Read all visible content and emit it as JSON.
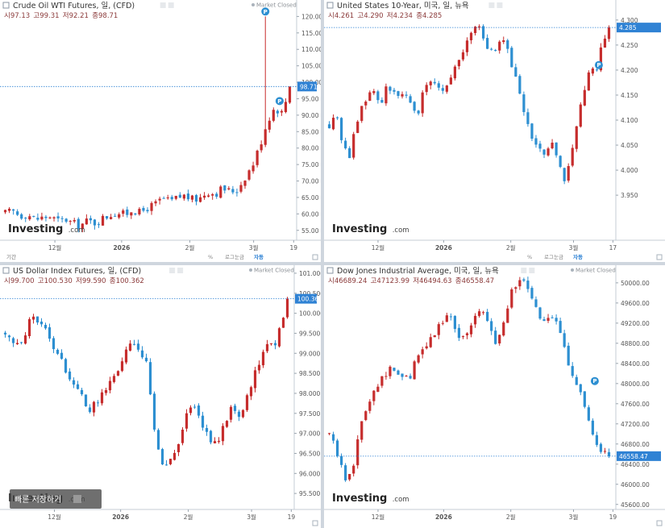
{
  "charts": [
    {
      "title": "Crude Oil WTI Futures, 일, (CFD)",
      "market_status": "Market Closed",
      "ohlc": {
        "o_label": "시",
        "o": "97.13",
        "h_label": "고",
        "h": "99.31",
        "l_label": "저",
        "l": "92.21",
        "c_label": "종",
        "c": "98.71"
      },
      "brand": "Investing",
      "brand_suffix": ".com",
      "last_price": "98.71",
      "bottom_left_label": "기간",
      "bottom_controls": [
        "%",
        "로그눈금",
        "자동"
      ],
      "colors": {
        "up": "#c62d2d",
        "down": "#2d8fd1",
        "pricetag": "#2f82d4",
        "marker": "#2d8fd1"
      }
    },
    {
      "title": "United States 10-Year, 미국, 일, 뉴욕",
      "market_status": "",
      "ohlc": {
        "o_label": "시",
        "o": "4.261",
        "h_label": "고",
        "h": "4.290",
        "l_label": "저",
        "l": "4.234",
        "c_label": "종",
        "c": "4.285"
      },
      "brand": "Investing",
      "brand_suffix": ".com",
      "last_price": "4.285",
      "bottom_left_label": "",
      "bottom_controls": [
        "%",
        "로그눈금",
        "자동"
      ],
      "colors": {
        "up": "#c62d2d",
        "down": "#2d8fd1",
        "pricetag": "#2f82d4",
        "marker": "#2d8fd1"
      }
    },
    {
      "title": "US Dollar Index Futures, 일, (CFD)",
      "market_status": "Market Closed",
      "ohlc": {
        "o_label": "시",
        "o": "99.700",
        "h_label": "고",
        "h": "100.530",
        "l_label": "저",
        "l": "99.590",
        "c_label": "종",
        "c": "100.362"
      },
      "brand": "Investing",
      "brand_suffix": ".com",
      "last_price": "100.362",
      "bottom_left_label": "",
      "bottom_controls": [],
      "overlay_button": "빠른 저장하기",
      "colors": {
        "up": "#c62d2d",
        "down": "#2d8fd1",
        "pricetag": "#2f82d4",
        "marker": "#2d8fd1"
      }
    },
    {
      "title": "Dow Jones Industrial Average, 미국, 일, 뉴욕",
      "market_status": "Market Closed",
      "ohlc": {
        "o_label": "시",
        "o": "46689.24",
        "h_label": "고",
        "h": "47123.99",
        "l_label": "저",
        "l": "46494.63",
        "c_label": "종",
        "c": "46558.47"
      },
      "brand": "Investing",
      "brand_suffix": ".com",
      "last_price": "46558.47",
      "bottom_left_label": "",
      "bottom_controls": [],
      "colors": {
        "up": "#c62d2d",
        "down": "#2d8fd1",
        "pricetag": "#2f82d4",
        "marker": "#2d8fd1"
      }
    }
  ],
  "chart_data": [
    {
      "type": "candlestick",
      "title": "Crude Oil WTI Futures, 일, (CFD)",
      "ylim": [
        52,
        125
      ],
      "y_ticks": [
        "120.00",
        "115.00",
        "110.00",
        "105.00",
        "100.00",
        "95.00",
        "90.00",
        "85.00",
        "80.00",
        "75.00",
        "70.00",
        "65.00",
        "60.00",
        "55.00"
      ],
      "x_ticks": [
        "12월",
        "2026",
        "2월",
        "3월",
        "19"
      ],
      "last_value": 98.71,
      "anchors": [
        60.2,
        60.8,
        59.5,
        59.9,
        58.3,
        58.9,
        59.2,
        57.8,
        58.4,
        57.1,
        56.5,
        57.9,
        57.3,
        58.6,
        59.8,
        60.4,
        59.7,
        61.5,
        60.2,
        61.9,
        62.8,
        64.7,
        63.6,
        64.9,
        65.6,
        64.3,
        64.8,
        66.9,
        66.1,
        67.8,
        66.9,
        67.3,
        71.2,
        74.6,
        80.7,
        88.2,
        92.4,
        90.6,
        98.71
      ],
      "high_spike": {
        "index": 35,
        "value": 120.0
      }
    },
    {
      "type": "candlestick",
      "title": "United States 10-Year, 미국, 일, 뉴욕",
      "ylim": [
        3.86,
        4.34
      ],
      "y_ticks": [
        "4.300",
        "4.250",
        "4.200",
        "4.150",
        "4.100",
        "4.050",
        "4.000",
        "3.950"
      ],
      "x_ticks": [
        "12월",
        "2026",
        "2월",
        "3월",
        "17"
      ],
      "last_value": 4.285,
      "anchors": [
        4.09,
        4.12,
        4.06,
        4.02,
        4.08,
        4.12,
        4.15,
        4.16,
        4.13,
        4.17,
        4.16,
        4.14,
        4.15,
        4.12,
        4.12,
        4.17,
        4.18,
        4.17,
        4.16,
        4.19,
        4.21,
        4.24,
        4.26,
        4.29,
        4.28,
        4.24,
        4.23,
        4.26,
        4.24,
        4.2,
        4.15,
        4.1,
        4.05,
        4.04,
        4.03,
        4.06,
        4.01,
        3.98,
        4.02,
        4.1,
        4.15,
        4.2,
        4.2,
        4.26,
        4.285
      ]
    },
    {
      "type": "candlestick",
      "title": "US Dollar Index Futures, 일, (CFD)",
      "ylim": [
        95.1,
        101.2
      ],
      "y_ticks": [
        "101.000",
        "100.500",
        "100.000",
        "99.500",
        "99.000",
        "98.500",
        "98.000",
        "97.500",
        "97.000",
        "96.500",
        "96.000",
        "95.500"
      ],
      "x_ticks": [
        "12월",
        "2026",
        "2월",
        "3월",
        "19"
      ],
      "last_value": 100.362,
      "anchors": [
        99.5,
        99.3,
        99.1,
        99.6,
        100.0,
        99.7,
        99.5,
        99.1,
        98.9,
        98.4,
        98.1,
        97.9,
        97.6,
        97.8,
        98.0,
        98.3,
        98.6,
        99.0,
        99.2,
        99.1,
        98.8,
        97.2,
        96.4,
        96.1,
        96.5,
        96.9,
        97.6,
        97.8,
        97.2,
        96.8,
        96.8,
        97.2,
        97.7,
        97.4,
        97.7,
        98.3,
        98.8,
        99.3,
        99.1,
        99.7,
        100.362
      ]
    },
    {
      "type": "candlestick",
      "title": "Dow Jones Industrial Average, 미국, 일, 뉴욕",
      "ylim": [
        45500,
        50350
      ],
      "y_ticks": [
        "50000.00",
        "49600.00",
        "49200.00",
        "48800.00",
        "48400.00",
        "48000.00",
        "47600.00",
        "47200.00",
        "46800.00",
        "46400.00",
        "46000.00",
        "45600.00"
      ],
      "x_ticks": [
        "12월",
        "2026",
        "2월",
        "3월",
        "19"
      ],
      "last_value": 46558.47,
      "anchors": [
        47000,
        46600,
        46100,
        46400,
        47200,
        47700,
        48000,
        48200,
        48300,
        48100,
        48100,
        48500,
        48700,
        49000,
        49200,
        49400,
        49000,
        48900,
        49300,
        49500,
        49100,
        48800,
        49400,
        49900,
        50100,
        49800,
        49400,
        49200,
        49300,
        49000,
        48400,
        48000,
        47500,
        46900,
        46600,
        46558.47
      ]
    }
  ]
}
